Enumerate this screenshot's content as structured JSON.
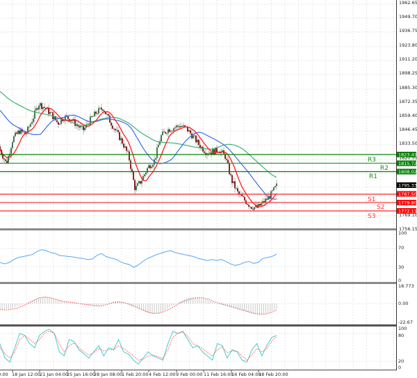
{
  "chart_data": [
    {
      "panel": "price",
      "type": "candlestick",
      "title": "",
      "y_axis_ticks": [
        1962.65,
        1949.7,
        1936.75,
        1923.8,
        1911.2,
        1898.25,
        1885.3,
        1872.35,
        1859.4,
        1846.45,
        1833.5,
        1820.55,
        1769.1,
        1756.15
      ],
      "ylim": [
        1756.15,
        1962.65
      ],
      "x_axis_ticks": [
        "0:00",
        "18 Jan 12:00",
        "21 Jan 04:00",
        "25 Jan 16:00",
        "28 Jan 08:00",
        "1 Feb 20:00",
        "4 Feb 12:00",
        "9 Feb 00:00",
        "11 Feb 16:00",
        "16 Feb 04:00",
        "18 Feb 20:00"
      ],
      "current_price": 1795.33,
      "levels": [
        {
          "name": "R3",
          "value": 1823.41,
          "color": "#008000"
        },
        {
          "name": "R2",
          "value": 1815.72,
          "color": "#008000"
        },
        {
          "name": "R1",
          "value": 1808.02,
          "color": "#008000"
        },
        {
          "name": "S1",
          "value": 1787.5,
          "color": "#ff0000"
        },
        {
          "name": "S2",
          "value": 1779.8,
          "color": "#ff0000"
        },
        {
          "name": "S3",
          "value": 1772.11,
          "color": "#ff0000"
        }
      ],
      "moving_averages": [
        {
          "name": "MA fast",
          "color": "#ff0000"
        },
        {
          "name": "MA medium",
          "color": "#3c6be8"
        },
        {
          "name": "MA slow",
          "color": "#3cb371"
        }
      ],
      "close_path_approx": [
        1828,
        1815,
        1838,
        1845,
        1842,
        1855,
        1870,
        1866,
        1860,
        1852,
        1858,
        1856,
        1850,
        1846,
        1855,
        1862,
        1866,
        1855,
        1845,
        1835,
        1822,
        1792,
        1800,
        1812,
        1818,
        1840,
        1846,
        1848,
        1850,
        1847,
        1840,
        1832,
        1826,
        1826,
        1828,
        1822,
        1800,
        1788,
        1782,
        1776,
        1775,
        1780,
        1786,
        1795
      ]
    },
    {
      "panel": "rsi",
      "type": "line",
      "y_axis_ticks": [
        100,
        70,
        30,
        0
      ],
      "ylim": [
        0,
        100
      ],
      "color": "#1e90ff",
      "values": [
        38,
        35,
        38,
        44,
        48,
        50,
        52,
        54,
        60,
        64,
        62,
        58,
        56,
        52,
        51,
        50,
        49,
        47,
        46,
        44,
        45,
        52,
        56,
        50,
        47,
        45,
        40,
        36,
        34,
        28,
        33,
        40,
        46,
        50,
        54,
        57,
        60,
        62,
        58,
        56,
        54,
        52,
        50,
        46,
        44,
        42,
        44,
        42,
        44,
        40,
        35,
        32,
        34,
        38,
        40,
        36,
        38,
        46,
        48,
        50,
        55
      ]
    },
    {
      "panel": "macd",
      "type": "histogram+line",
      "y_axis_ticks": [
        18.773,
        0.0,
        -22.67
      ],
      "ylim": [
        -22.67,
        18.773
      ],
      "histogram_color": "#c0c0c0",
      "signal_color": "#ff0000",
      "histogram": [
        -6,
        -7,
        -6,
        -4,
        -1,
        2,
        5,
        7,
        8,
        7,
        5,
        3,
        2,
        1,
        0,
        -1,
        -2,
        -3,
        -2,
        0,
        2,
        3,
        1,
        -2,
        -5,
        -8,
        -11,
        -13,
        -12,
        -9,
        -5,
        -1,
        3,
        6,
        8,
        8,
        7,
        4,
        1,
        -1,
        -3,
        -5,
        -7,
        -9,
        -11,
        -13,
        -14,
        -13,
        -10,
        -7
      ],
      "signal": [
        -7,
        -8,
        -7,
        -6,
        -3,
        0,
        4,
        7,
        8,
        7,
        5,
        3,
        2,
        1,
        0,
        -1,
        -2,
        -3,
        -3,
        -1,
        1,
        2,
        1,
        -1,
        -4,
        -7,
        -10,
        -12,
        -12,
        -10,
        -7,
        -3,
        1,
        4,
        6,
        7,
        7,
        5,
        2,
        0,
        -2,
        -4,
        -6,
        -8,
        -10,
        -12,
        -13,
        -13,
        -11,
        -8
      ]
    },
    {
      "panel": "stochastic",
      "type": "line",
      "y_axis_ticks": [
        100,
        80,
        20,
        0
      ],
      "ylim": [
        0,
        100
      ],
      "series": [
        {
          "name": "%K",
          "color": "#48c9c9",
          "values": [
            60,
            25,
            15,
            50,
            85,
            80,
            60,
            50,
            80,
            90,
            95,
            85,
            40,
            30,
            70,
            65,
            45,
            35,
            25,
            40,
            55,
            30,
            50,
            45,
            70,
            40,
            35,
            20,
            10,
            25,
            40,
            30,
            25,
            20,
            60,
            90,
            85,
            90,
            70,
            50,
            55,
            40,
            30,
            20,
            60,
            55,
            25,
            45,
            40,
            20,
            15,
            45,
            60,
            30,
            55,
            75,
            80
          ]
        },
        {
          "name": "%D",
          "color": "#ff6060",
          "values": [
            50,
            35,
            25,
            40,
            70,
            80,
            70,
            60,
            70,
            85,
            90,
            85,
            60,
            40,
            55,
            62,
            50,
            40,
            32,
            38,
            48,
            42,
            45,
            45,
            55,
            48,
            40,
            30,
            20,
            22,
            30,
            32,
            28,
            24,
            45,
            75,
            85,
            88,
            78,
            60,
            55,
            48,
            38,
            30,
            45,
            52,
            38,
            42,
            42,
            30,
            20,
            32,
            48,
            40,
            48,
            65,
            78
          ]
        }
      ]
    }
  ],
  "labels": {
    "r3": "R3",
    "r2": "R2",
    "r1": "R1",
    "s1": "S1",
    "s2": "S2",
    "s3": "S3",
    "tag_r3": "1823.41",
    "tag_r2": "1815.72",
    "tag_r1": "1808.02",
    "tag_cur": "1795.33",
    "tag_s1": "1787.50",
    "tag_s2": "1779.80",
    "tag_s3": "1772.11",
    "y_1962": "1962.65",
    "y_1949": "1949.70",
    "y_1936": "1936.75",
    "y_1923": "1923.80",
    "y_1911": "1911.20",
    "y_1898": "1898.25",
    "y_1885": "1885.30",
    "y_1872": "1872.35",
    "y_1859": "1859.40",
    "y_1846": "1846.45",
    "y_1833": "1833.50",
    "y_1820": "1820.55",
    "y_1769": "1769.10",
    "y_1756": "1756.15",
    "rsi_100": "100",
    "rsi_70": "70",
    "rsi_30": "30",
    "rsi_0": "0",
    "macd_top": "18.773",
    "macd_zero": "0.00",
    "macd_bot": "-22.67",
    "st_100": "100",
    "st_80": "80",
    "st_20": "20",
    "st_0": "0",
    "x0": "0:00",
    "x1": "18 Jan 12:00",
    "x2": "21 Jan 04:00",
    "x3": "25 Jan 16:00",
    "x4": "28 Jan 08:00",
    "x5": "1 Feb 20:00",
    "x6": "4 Feb 12:00",
    "x7": "9 Feb 00:00",
    "x8": "11 Feb 16:00",
    "x9": "16 Feb 04:00",
    "x10": "18 Feb 20:00"
  },
  "colors": {
    "resistance": "#008000",
    "support": "#ff0000",
    "current_tag_bg": "#000000",
    "grid": "#d8d8d8",
    "bull_candle": "#2e6b3e",
    "bear_candle": "#7a1010",
    "wick": "#909090"
  }
}
